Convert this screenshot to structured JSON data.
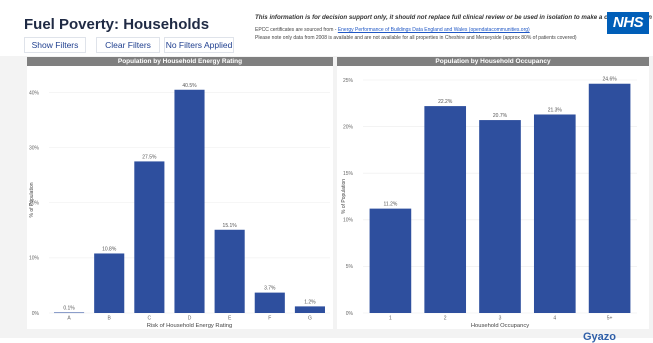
{
  "header": {
    "title": "Fuel Poverty: Households",
    "buttons": {
      "show_filters": "Show Filters",
      "clear_filters": "Clear Filters",
      "filter_status": "No Filters Applied"
    },
    "disclaimer": "This information is for decision support only, it should not replace full clinical review or be used in isolation to make a clinical decision",
    "note_prefix": "EPCC certificates are sourced from - ",
    "note_link": "Energy Performance of Buildings Data England and Wales (opendatacommunities.org)",
    "note2": "Please note only data from 2008 is available and are not available for all properties in Cheshire and Merseyside (approx 80% of patients covered)",
    "logo": "NHS",
    "colors": {
      "logo_bg": "#005eb8",
      "bar": "#2e4f9e",
      "panel_header": "#7f7f7f"
    }
  },
  "chart_data": [
    {
      "type": "bar",
      "title": "Population by Household Energy Rating",
      "xlabel": "Risk of Household Energy Rating",
      "ylabel": "% of Population",
      "categories": [
        "A",
        "B",
        "C",
        "D",
        "E",
        "F",
        "G"
      ],
      "values": [
        0.1,
        10.8,
        27.5,
        40.5,
        15.1,
        3.7,
        1.2
      ],
      "value_labels": [
        "0.1%",
        "10.8%",
        "27.5%",
        "40.5%",
        "15.1%",
        "3.7%",
        "1.2%"
      ],
      "y_ticks": [
        0,
        10,
        20,
        30,
        40
      ],
      "y_tick_labels": [
        "0%",
        "10%",
        "20%",
        "30%",
        "40%"
      ],
      "ylim": [
        0,
        41
      ],
      "grid": true
    },
    {
      "type": "bar",
      "title": "Population by Household Occupancy",
      "xlabel": "Household Occupancy",
      "ylabel": "% of Population",
      "categories": [
        "1",
        "2",
        "3",
        "4",
        "5+"
      ],
      "values": [
        11.2,
        22.2,
        20.7,
        21.3,
        24.6
      ],
      "value_labels": [
        "11.2%",
        "22.2%",
        "20.7%",
        "21.3%",
        "24.6%"
      ],
      "y_ticks": [
        0,
        5,
        10,
        15,
        20,
        25
      ],
      "y_tick_labels": [
        "0%",
        "5%",
        "10%",
        "15%",
        "20%",
        "25%"
      ],
      "ylim": [
        0,
        25
      ],
      "grid": true
    }
  ],
  "watermark": "Gyazo"
}
